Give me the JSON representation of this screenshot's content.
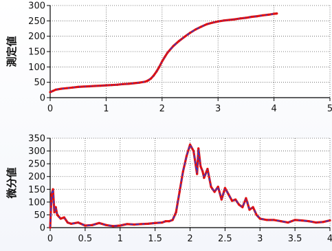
{
  "chart_data": [
    {
      "type": "line",
      "title": "",
      "xlabel": "",
      "ylabel": "測定値",
      "xlim": [
        0,
        5
      ],
      "ylim": [
        0,
        300
      ],
      "xticks": [
        0,
        1,
        2,
        3,
        4,
        5
      ],
      "yticks": [
        0,
        50,
        100,
        150,
        200,
        250,
        300
      ],
      "grid": true,
      "series": [
        {
          "line_color": "#1f3fe0",
          "marker_color": "#e01010",
          "x": [
            0.0,
            0.05,
            0.1,
            0.2,
            0.3,
            0.4,
            0.5,
            0.6,
            0.7,
            0.8,
            0.9,
            1.0,
            1.1,
            1.2,
            1.3,
            1.4,
            1.5,
            1.6,
            1.7,
            1.75,
            1.8,
            1.85,
            1.9,
            1.95,
            2.0,
            2.05,
            2.1,
            2.2,
            2.3,
            2.4,
            2.5,
            2.6,
            2.7,
            2.8,
            2.9,
            3.0,
            3.1,
            3.2,
            3.3,
            3.4,
            3.5,
            3.6,
            3.7,
            3.8,
            3.9,
            4.0,
            4.05
          ],
          "y": [
            18,
            22,
            26,
            29,
            31,
            33,
            35,
            36,
            37,
            38,
            39,
            40,
            41,
            42,
            44,
            45,
            47,
            49,
            52,
            56,
            62,
            72,
            85,
            100,
            118,
            133,
            147,
            168,
            184,
            198,
            211,
            222,
            231,
            239,
            244,
            248,
            251,
            253,
            255,
            258,
            260,
            263,
            265,
            268,
            270,
            273,
            274
          ]
        }
      ]
    },
    {
      "type": "line",
      "title": "",
      "xlabel": "",
      "ylabel": "微分値",
      "xlim": [
        0,
        4
      ],
      "ylim": [
        0,
        350
      ],
      "xticks": [
        0,
        0.5,
        1,
        1.5,
        2,
        2.5,
        3,
        3.5,
        4
      ],
      "yticks": [
        0,
        50,
        100,
        150,
        200,
        250,
        300,
        350
      ],
      "grid": true,
      "series": [
        {
          "line_color": "#1f3fe0",
          "marker_color": "#e01010",
          "x": [
            0.0,
            0.02,
            0.04,
            0.06,
            0.08,
            0.1,
            0.15,
            0.2,
            0.25,
            0.3,
            0.4,
            0.5,
            0.6,
            0.7,
            0.8,
            0.9,
            1.0,
            1.1,
            1.2,
            1.3,
            1.4,
            1.5,
            1.6,
            1.65,
            1.7,
            1.75,
            1.8,
            1.85,
            1.9,
            1.95,
            2.0,
            2.05,
            2.1,
            2.12,
            2.15,
            2.18,
            2.2,
            2.25,
            2.3,
            2.35,
            2.4,
            2.45,
            2.5,
            2.55,
            2.6,
            2.65,
            2.7,
            2.75,
            2.8,
            2.85,
            2.9,
            2.95,
            3.0,
            3.1,
            3.2,
            3.3,
            3.4,
            3.5,
            3.6,
            3.7,
            3.8,
            3.9,
            4.0
          ],
          "y": [
            0,
            130,
            150,
            60,
            80,
            50,
            35,
            40,
            20,
            15,
            20,
            8,
            10,
            18,
            10,
            6,
            8,
            14,
            12,
            14,
            15,
            18,
            20,
            25,
            25,
            30,
            60,
            140,
            220,
            280,
            325,
            300,
            210,
            310,
            240,
            220,
            195,
            230,
            160,
            140,
            160,
            110,
            155,
            130,
            105,
            110,
            90,
            80,
            115,
            70,
            80,
            50,
            35,
            30,
            30,
            25,
            20,
            30,
            28,
            25,
            20,
            22,
            28
          ]
        }
      ]
    }
  ]
}
